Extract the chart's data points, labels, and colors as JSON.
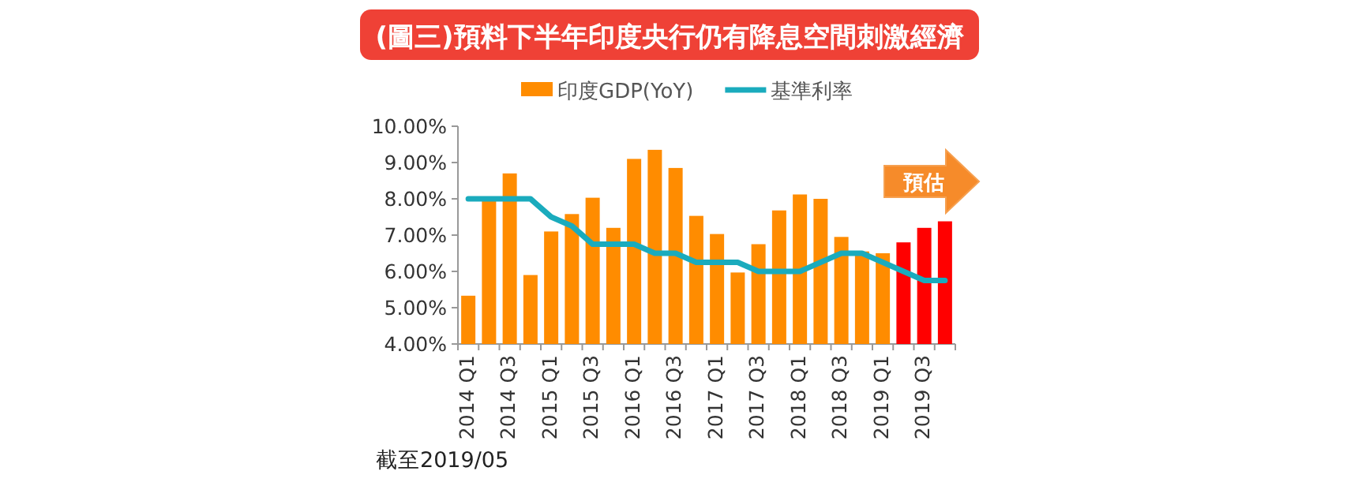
{
  "chart_data": {
    "type": "bar",
    "title": "(圖三)預料下半年印度央行仍有降息空間刺激經濟",
    "categories": [
      "2014 Q1",
      null,
      "2014 Q3",
      null,
      "2015 Q1",
      null,
      "2015 Q3",
      null,
      "2016 Q1",
      null,
      "2016 Q3",
      null,
      "2017 Q1",
      null,
      "2017 Q3",
      null,
      "2018 Q1",
      null,
      "2018 Q3",
      null,
      "2019 Q1",
      null,
      "2019 Q3",
      null
    ],
    "series": [
      {
        "name": "印度GDP(YoY)",
        "color": "#ff8c00",
        "colors": [
          "#ff8c00",
          "#ff8c00",
          "#ff8c00",
          "#ff8c00",
          "#ff8c00",
          "#ff8c00",
          "#ff8c00",
          "#ff8c00",
          "#ff8c00",
          "#ff8c00",
          "#ff8c00",
          "#ff8c00",
          "#ff8c00",
          "#ff8c00",
          "#ff8c00",
          "#ff8c00",
          "#ff8c00",
          "#ff8c00",
          "#ff8c00",
          "#ff8c00",
          "#ff8c00",
          "#ff0000",
          "#ff0000",
          "#ff0000"
        ],
        "values": [
          5.33,
          7.95,
          8.7,
          5.9,
          7.1,
          7.58,
          8.03,
          7.2,
          9.1,
          9.35,
          8.85,
          7.53,
          7.03,
          5.97,
          6.75,
          7.68,
          8.12,
          8.0,
          6.95,
          6.55,
          6.5,
          6.8,
          7.2,
          7.38
        ]
      },
      {
        "name": "基準利率",
        "type": "line",
        "color": "#1aabbd",
        "values": [
          8,
          8,
          8,
          8,
          7.5,
          7.25,
          6.75,
          6.75,
          6.75,
          6.5,
          6.5,
          6.25,
          6.25,
          6.25,
          6.0,
          6.0,
          6.0,
          6.25,
          6.5,
          6.5,
          6.25,
          6.0,
          5.75,
          5.75
        ]
      }
    ],
    "ylim": [
      4,
      10
    ],
    "yticks": [
      {
        "value": 4,
        "label": "4.00%"
      },
      {
        "value": 5,
        "label": "5.00%"
      },
      {
        "value": 6,
        "label": "6.00%"
      },
      {
        "value": 7,
        "label": "7.00%"
      },
      {
        "value": 8,
        "label": "8.00%"
      },
      {
        "value": 9,
        "label": "9.00%"
      },
      {
        "value": 10,
        "label": "10.00%"
      }
    ],
    "legend": "top",
    "annotations": [
      "預估",
      "截至2019/05"
    ]
  }
}
